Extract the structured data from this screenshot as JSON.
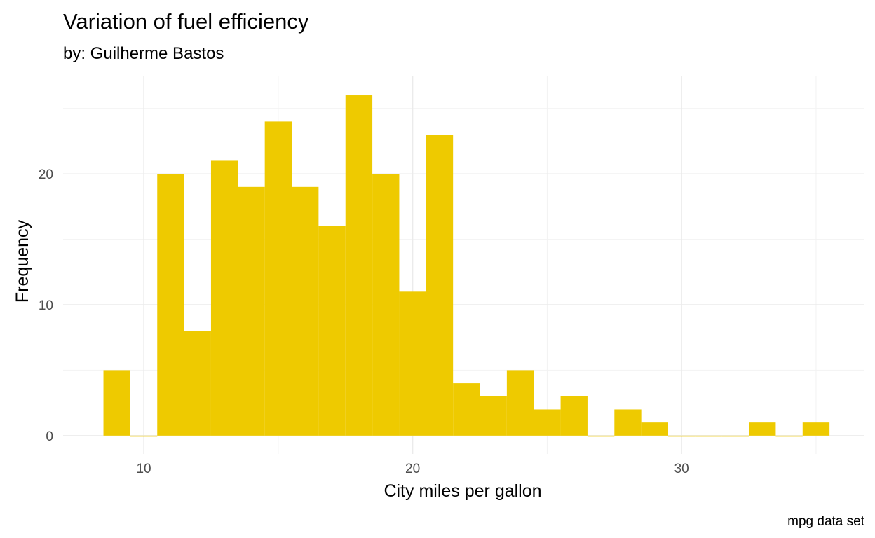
{
  "chart_data": {
    "type": "bar",
    "title": "Variation of fuel efficiency",
    "subtitle": "by: Guilherme Bastos",
    "xlabel": "City miles per gallon",
    "ylabel": "Frequency",
    "caption": "mpg data set",
    "xlim": [
      7,
      36.8
    ],
    "ylim": [
      -1.4,
      27.5
    ],
    "x_ticks": [
      10,
      20,
      30
    ],
    "x_tick_labels": [
      "10",
      "20",
      "30"
    ],
    "y_ticks": [
      0,
      10,
      20
    ],
    "y_tick_labels": [
      "0",
      "10",
      "20"
    ],
    "bin_width": 1.0,
    "bin_centers": [
      9,
      10,
      11,
      12,
      13,
      14,
      15,
      16,
      17,
      18,
      19,
      20,
      21,
      22,
      23,
      24,
      25,
      26,
      27,
      28,
      29,
      30,
      31,
      32,
      33,
      34,
      35
    ],
    "values": [
      5,
      0,
      20,
      8,
      21,
      19,
      24,
      19,
      16,
      26,
      20,
      11,
      23,
      4,
      3,
      5,
      2,
      3,
      0,
      2,
      1,
      0,
      0,
      0,
      1,
      0,
      1
    ],
    "bar_color": "#EECA00",
    "grid": true,
    "legend": "none"
  }
}
